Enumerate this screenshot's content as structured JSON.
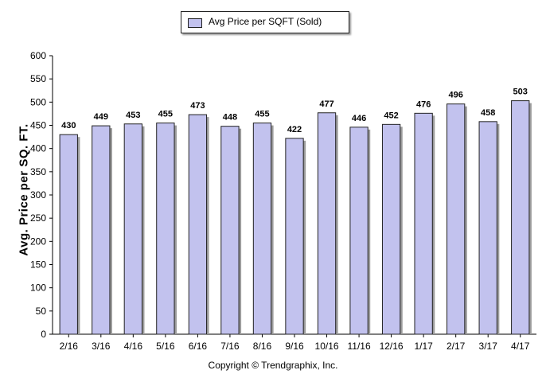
{
  "chart_data": {
    "type": "bar",
    "categories": [
      "2/16",
      "3/16",
      "4/16",
      "5/16",
      "6/16",
      "7/16",
      "8/16",
      "9/16",
      "10/16",
      "11/16",
      "12/16",
      "1/17",
      "2/17",
      "3/17",
      "4/17"
    ],
    "series": [
      {
        "name": "Avg Price per SQFT (Sold)",
        "values": [
          430,
          449,
          453,
          455,
          473,
          448,
          455,
          422,
          477,
          446,
          452,
          476,
          496,
          458,
          503
        ]
      }
    ],
    "ylabel": "Avg. Price per SQ. FT.",
    "xlabel": "",
    "ylim": [
      0,
      600
    ],
    "yticks": [
      0,
      50,
      100,
      150,
      200,
      250,
      300,
      350,
      400,
      450,
      500,
      550,
      600
    ],
    "data_labels": true,
    "legend_position": "top-center",
    "grid": false,
    "bar_color": "#c2c2ee"
  },
  "footer": {
    "copyright": "Copyright © Trendgraphix, Inc."
  }
}
